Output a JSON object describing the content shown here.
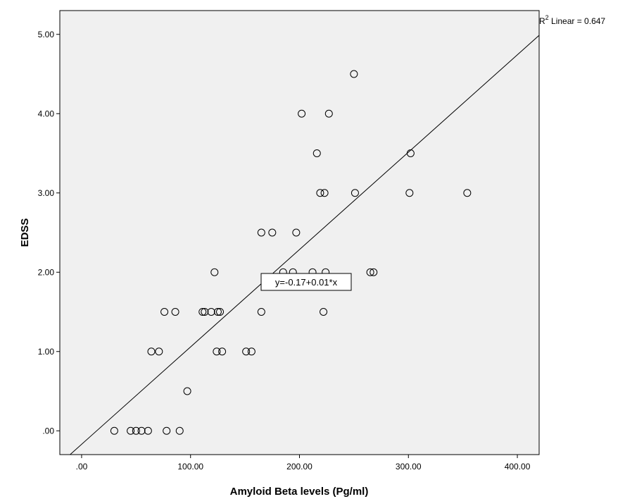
{
  "chart_data": {
    "type": "scatter",
    "xlabel": "Amyloid Beta levels (Pg/ml)",
    "ylabel": "EDSS",
    "xlim": [
      -20,
      420
    ],
    "ylim": [
      -0.3,
      5.3
    ],
    "x_ticks": [
      ".00",
      "100.00",
      "200.00",
      "300.00",
      "400.00"
    ],
    "y_ticks": [
      ".00",
      "1.00",
      "2.00",
      "3.00",
      "4.00",
      "5.00"
    ],
    "grid": false,
    "fit_line": {
      "intercept": -0.17,
      "slope": 0.01228,
      "equation_label": "y=-0.17+0.01*x"
    },
    "r2_label": {
      "prefix": "R",
      "sup": "2",
      "suffix": " Linear = 0.647"
    },
    "points": [
      {
        "x": 30,
        "y": 0
      },
      {
        "x": 45,
        "y": 0
      },
      {
        "x": 50,
        "y": 0
      },
      {
        "x": 55,
        "y": 0
      },
      {
        "x": 61,
        "y": 0
      },
      {
        "x": 78,
        "y": 0
      },
      {
        "x": 90,
        "y": 0
      },
      {
        "x": 97,
        "y": 0.5
      },
      {
        "x": 64,
        "y": 1
      },
      {
        "x": 71,
        "y": 1
      },
      {
        "x": 124,
        "y": 1
      },
      {
        "x": 129,
        "y": 1
      },
      {
        "x": 151,
        "y": 1
      },
      {
        "x": 156,
        "y": 1
      },
      {
        "x": 76,
        "y": 1.5
      },
      {
        "x": 86,
        "y": 1.5
      },
      {
        "x": 111,
        "y": 1.5
      },
      {
        "x": 113,
        "y": 1.5
      },
      {
        "x": 119,
        "y": 1.5
      },
      {
        "x": 125,
        "y": 1.5
      },
      {
        "x": 127,
        "y": 1.5
      },
      {
        "x": 165,
        "y": 1.5
      },
      {
        "x": 222,
        "y": 1.5
      },
      {
        "x": 122,
        "y": 2
      },
      {
        "x": 185,
        "y": 2
      },
      {
        "x": 194,
        "y": 2
      },
      {
        "x": 212,
        "y": 2
      },
      {
        "x": 224,
        "y": 2
      },
      {
        "x": 265,
        "y": 2
      },
      {
        "x": 268,
        "y": 2
      },
      {
        "x": 165,
        "y": 2.5
      },
      {
        "x": 175,
        "y": 2.5
      },
      {
        "x": 197,
        "y": 2.5
      },
      {
        "x": 219,
        "y": 3
      },
      {
        "x": 223,
        "y": 3
      },
      {
        "x": 251,
        "y": 3
      },
      {
        "x": 301,
        "y": 3
      },
      {
        "x": 354,
        "y": 3
      },
      {
        "x": 216,
        "y": 3.5
      },
      {
        "x": 302,
        "y": 3.5
      },
      {
        "x": 202,
        "y": 4
      },
      {
        "x": 227,
        "y": 4
      },
      {
        "x": 250,
        "y": 4.5
      }
    ]
  }
}
